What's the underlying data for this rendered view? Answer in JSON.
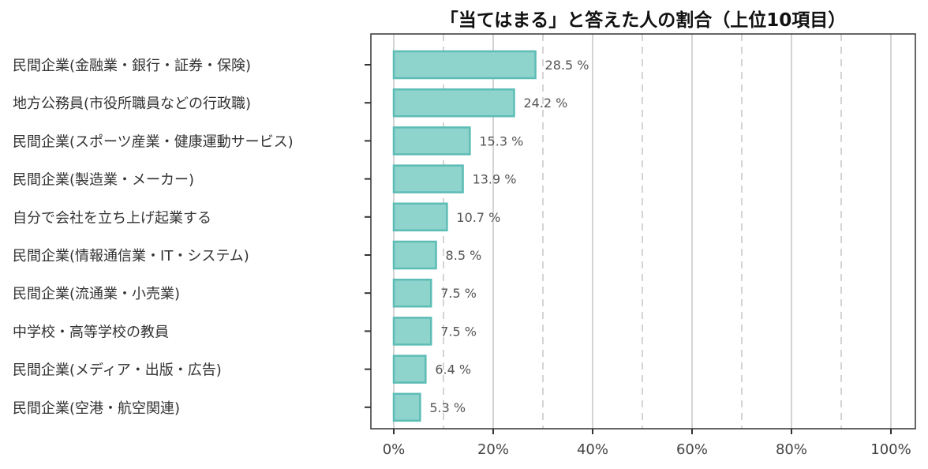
{
  "chart_data": {
    "type": "bar",
    "orientation": "horizontal",
    "title": "「当てはまる」と答えた人の割合（上位10項目）",
    "categories": [
      "民間企業(金融業・銀行・証券・保険)",
      "地方公務員(市役所職員などの行政職)",
      "民間企業(スポーツ産業・健康運動サービス)",
      "民間企業(製造業・メーカー)",
      "自分で会社を立ち上げ起業する",
      "民間企業(情報通信業・IT・システム)",
      "民間企業(流通業・小売業)",
      "中学校・高等学校の教員",
      "民間企業(メディア・出版・広告)",
      "民間企業(空港・航空関連)"
    ],
    "values": [
      28.5,
      24.2,
      15.3,
      13.9,
      10.7,
      8.5,
      7.5,
      7.5,
      6.4,
      5.3
    ],
    "value_labels": [
      "28.5 %",
      "24.2 %",
      "15.3 %",
      "13.9 %",
      "10.7 %",
      "8.5 %",
      "7.5 %",
      "7.5 %",
      "6.4 %",
      "5.3 %"
    ],
    "xlim": [
      0,
      100
    ],
    "x_ticks": [
      0,
      20,
      40,
      60,
      80,
      100
    ],
    "x_tick_labels": [
      "0%",
      "20%",
      "40%",
      "60%",
      "80%",
      "100%"
    ],
    "dashed_gridlines": [
      10,
      30,
      50,
      70,
      90
    ],
    "grid": true,
    "xlabel": "",
    "ylabel": "",
    "colors": {
      "bar_fill": "#8fd3cd",
      "bar_stroke": "#5cbdb5",
      "grid": "#d4d4d4",
      "text": "#333333"
    }
  }
}
